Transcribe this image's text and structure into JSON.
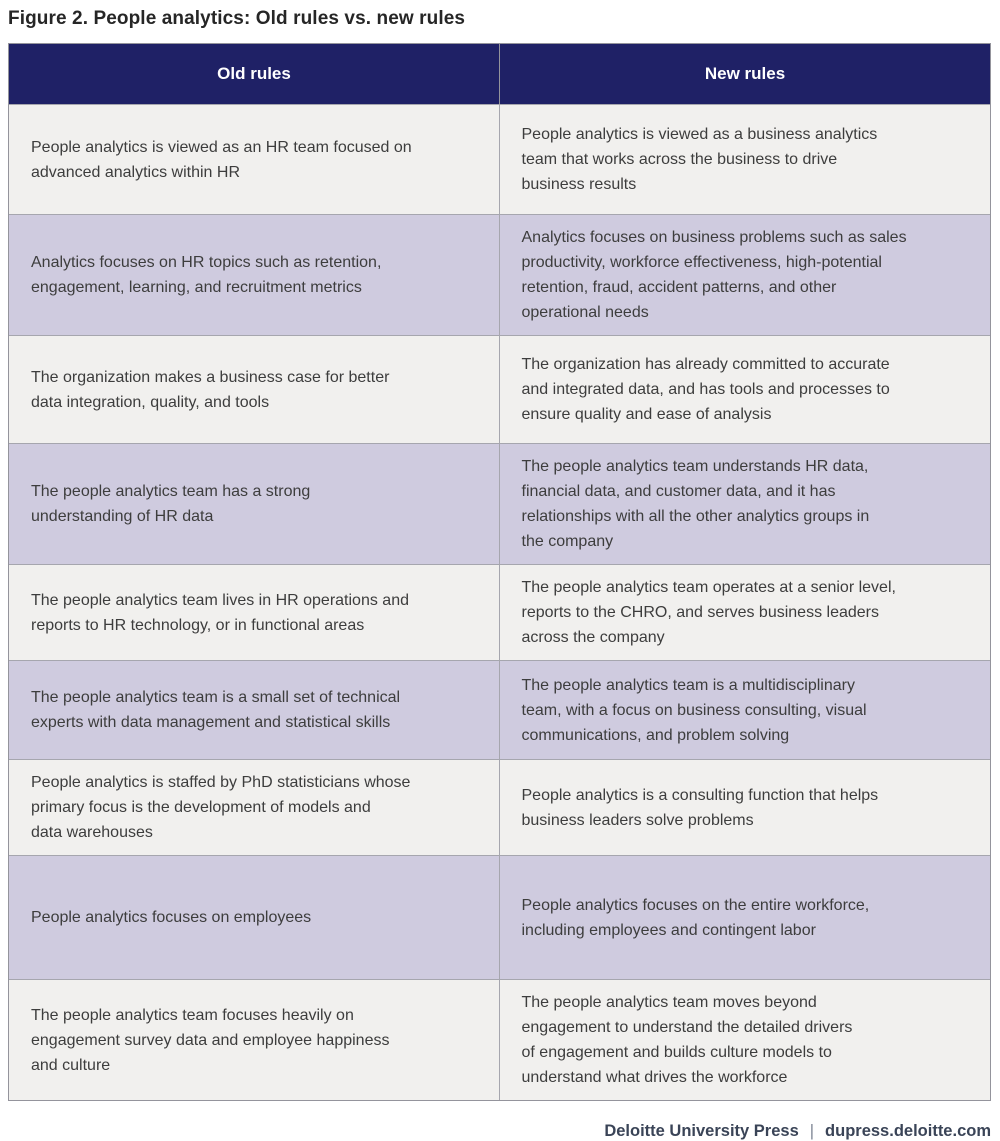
{
  "figure": {
    "title": "Figure 2. People analytics: Old rules vs. new rules"
  },
  "table": {
    "columns": [
      {
        "label": "Old rules"
      },
      {
        "label": "New rules"
      }
    ],
    "rows": [
      {
        "old": "People analytics is viewed as an HR team focused on\nadvanced analytics within HR",
        "new": "People analytics is viewed as a business analytics\nteam that works across the business to drive\nbusiness results"
      },
      {
        "old": "Analytics focuses on HR topics such as retention,\nengagement, learning, and recruitment metrics",
        "new": "Analytics focuses on business problems such as sales\nproductivity, workforce effectiveness, high-potential\nretention, fraud, accident patterns, and other\noperational needs"
      },
      {
        "old": "The organization makes a business case for better\ndata integration, quality, and tools",
        "new": "The organization has already committed to accurate\nand integrated data, and has tools and processes to\nensure quality and ease of analysis"
      },
      {
        "old": "The people analytics team has a strong\nunderstanding of HR data",
        "new": "The people analytics team understands HR data,\nfinancial data, and customer data, and it has\nrelationships with all the other analytics groups in\nthe company"
      },
      {
        "old": "The people analytics team lives in HR operations and\nreports to HR technology, or in functional areas",
        "new": "The people analytics team operates at a senior level,\nreports to the CHRO, and serves business leaders\nacross the company"
      },
      {
        "old": "The people analytics team is a small set of technical\nexperts with data management and statistical skills",
        "new": "The people analytics team is a multidisciplinary\nteam, with a focus on business consulting, visual\ncommunications, and problem solving"
      },
      {
        "old": "People analytics is staffed by PhD statisticians whose\nprimary focus is the development of models and\ndata warehouses",
        "new": "People analytics is a consulting function that helps\nbusiness leaders solve problems"
      },
      {
        "old": "People analytics focuses on employees",
        "new": "People analytics focuses on the entire workforce,\nincluding employees and contingent labor"
      },
      {
        "old": "The people analytics team focuses heavily on\nengagement survey data and employee happiness\nand culture",
        "new": "The people analytics team moves beyond\nengagement to understand the detailed drivers\nof engagement and builds culture models to\nunderstand what drives the workforce"
      }
    ]
  },
  "footer": {
    "publisher": "Deloitte University Press",
    "separator": "|",
    "url": "dupress.deloitte.com"
  },
  "colors": {
    "header_bg": "#1f2166",
    "header_text": "#ffffff",
    "row_bg": "#f1f0ee",
    "row_alt_bg": "#cfcbdf",
    "body_text": "#3d3d3d",
    "border": "#94949c",
    "title_text": "#262626",
    "footer_text": "#3a4457"
  }
}
